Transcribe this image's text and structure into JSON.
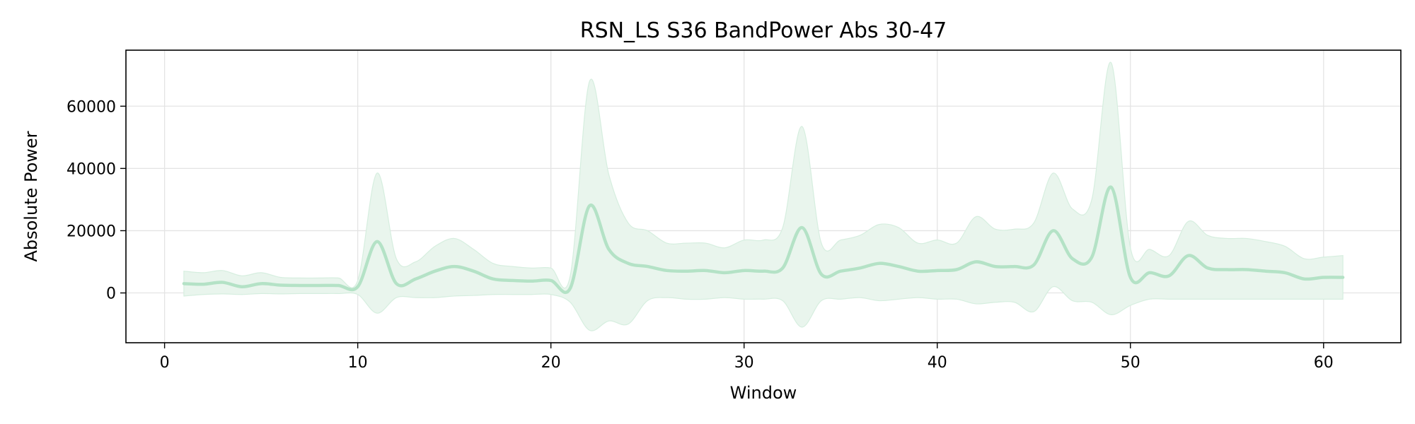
{
  "chart_data": {
    "type": "line",
    "title": "RSN_LS S36 BandPower Abs 30-47",
    "xlabel": "Window",
    "ylabel": "Absolute Power",
    "xlim": [
      -2,
      64
    ],
    "ylim": [
      -16000,
      78000
    ],
    "xticks": [
      0,
      10,
      20,
      30,
      40,
      50,
      60
    ],
    "yticks": [
      0,
      20000,
      40000,
      60000
    ],
    "grid": true,
    "colors": {
      "line": "#b4e2c6",
      "band": "#e9f5ed",
      "band_edge": "#d6eedf",
      "grid": "#e4e4e4"
    },
    "series": [
      {
        "x": [
          1,
          2,
          3,
          4,
          5,
          6,
          7,
          8,
          9,
          10,
          11,
          12,
          13,
          14,
          15,
          16,
          17,
          18,
          19,
          20,
          21,
          22,
          23,
          24,
          25,
          26,
          27,
          28,
          29,
          30,
          31,
          32,
          33,
          34,
          35,
          36,
          37,
          38,
          39,
          40,
          41,
          42,
          43,
          44,
          45,
          46,
          47,
          48,
          49,
          50,
          51,
          52,
          53,
          54,
          55,
          56,
          57,
          58,
          59,
          60,
          61
        ],
        "y": [
          3000,
          2800,
          3400,
          2000,
          3000,
          2500,
          2400,
          2400,
          2400,
          2000,
          16500,
          3000,
          4500,
          7000,
          8500,
          7000,
          4500,
          4000,
          3800,
          4000,
          1500,
          28000,
          14000,
          9500,
          8500,
          7200,
          7000,
          7200,
          6500,
          7200,
          7000,
          8000,
          21000,
          6000,
          7000,
          8000,
          9500,
          8500,
          7000,
          7200,
          7500,
          10000,
          8500,
          8500,
          9000,
          20000,
          11000,
          11500,
          34000,
          5000,
          6500,
          5500,
          12000,
          8000,
          7500,
          7500,
          7000,
          6500,
          4500,
          5000,
          5000
        ],
        "upper": [
          7000,
          6500,
          7200,
          5500,
          6500,
          5000,
          4800,
          4800,
          4800,
          4000,
          38500,
          11000,
          10000,
          15000,
          17500,
          14000,
          9500,
          8500,
          8000,
          8000,
          5500,
          68000,
          38000,
          22500,
          20000,
          16000,
          16000,
          16000,
          14500,
          17000,
          17000,
          21000,
          53500,
          16000,
          17000,
          18500,
          22000,
          21000,
          16000,
          17000,
          16000,
          24500,
          20500,
          20500,
          22500,
          38500,
          27000,
          30000,
          74000,
          14500,
          14000,
          12000,
          23000,
          18500,
          17500,
          17500,
          16500,
          15000,
          11000,
          11500,
          12000
        ]
      }
    ],
    "band_lower": [
      -1000,
      -500,
      -300,
      -500,
      -200,
      -300,
      -200,
      -200,
      -200,
      -500,
      -6500,
      -1500,
      -1500,
      -1500,
      -1000,
      -800,
      -500,
      -500,
      -500,
      -500,
      -3000,
      -12000,
      -9000,
      -10000,
      -2500,
      -1500,
      -2000,
      -2000,
      -1500,
      -2000,
      -2000,
      -2500,
      -11000,
      -2500,
      -2000,
      -1500,
      -2500,
      -2000,
      -1500,
      -2000,
      -2000,
      -3500,
      -3000,
      -3000,
      -6000,
      2000,
      -2500,
      -3000,
      -7000,
      -4000,
      -2000,
      -2000,
      -2000,
      -2000,
      -2000,
      -2000,
      -2000,
      -2000,
      -2000,
      -2000,
      -2000
    ]
  }
}
